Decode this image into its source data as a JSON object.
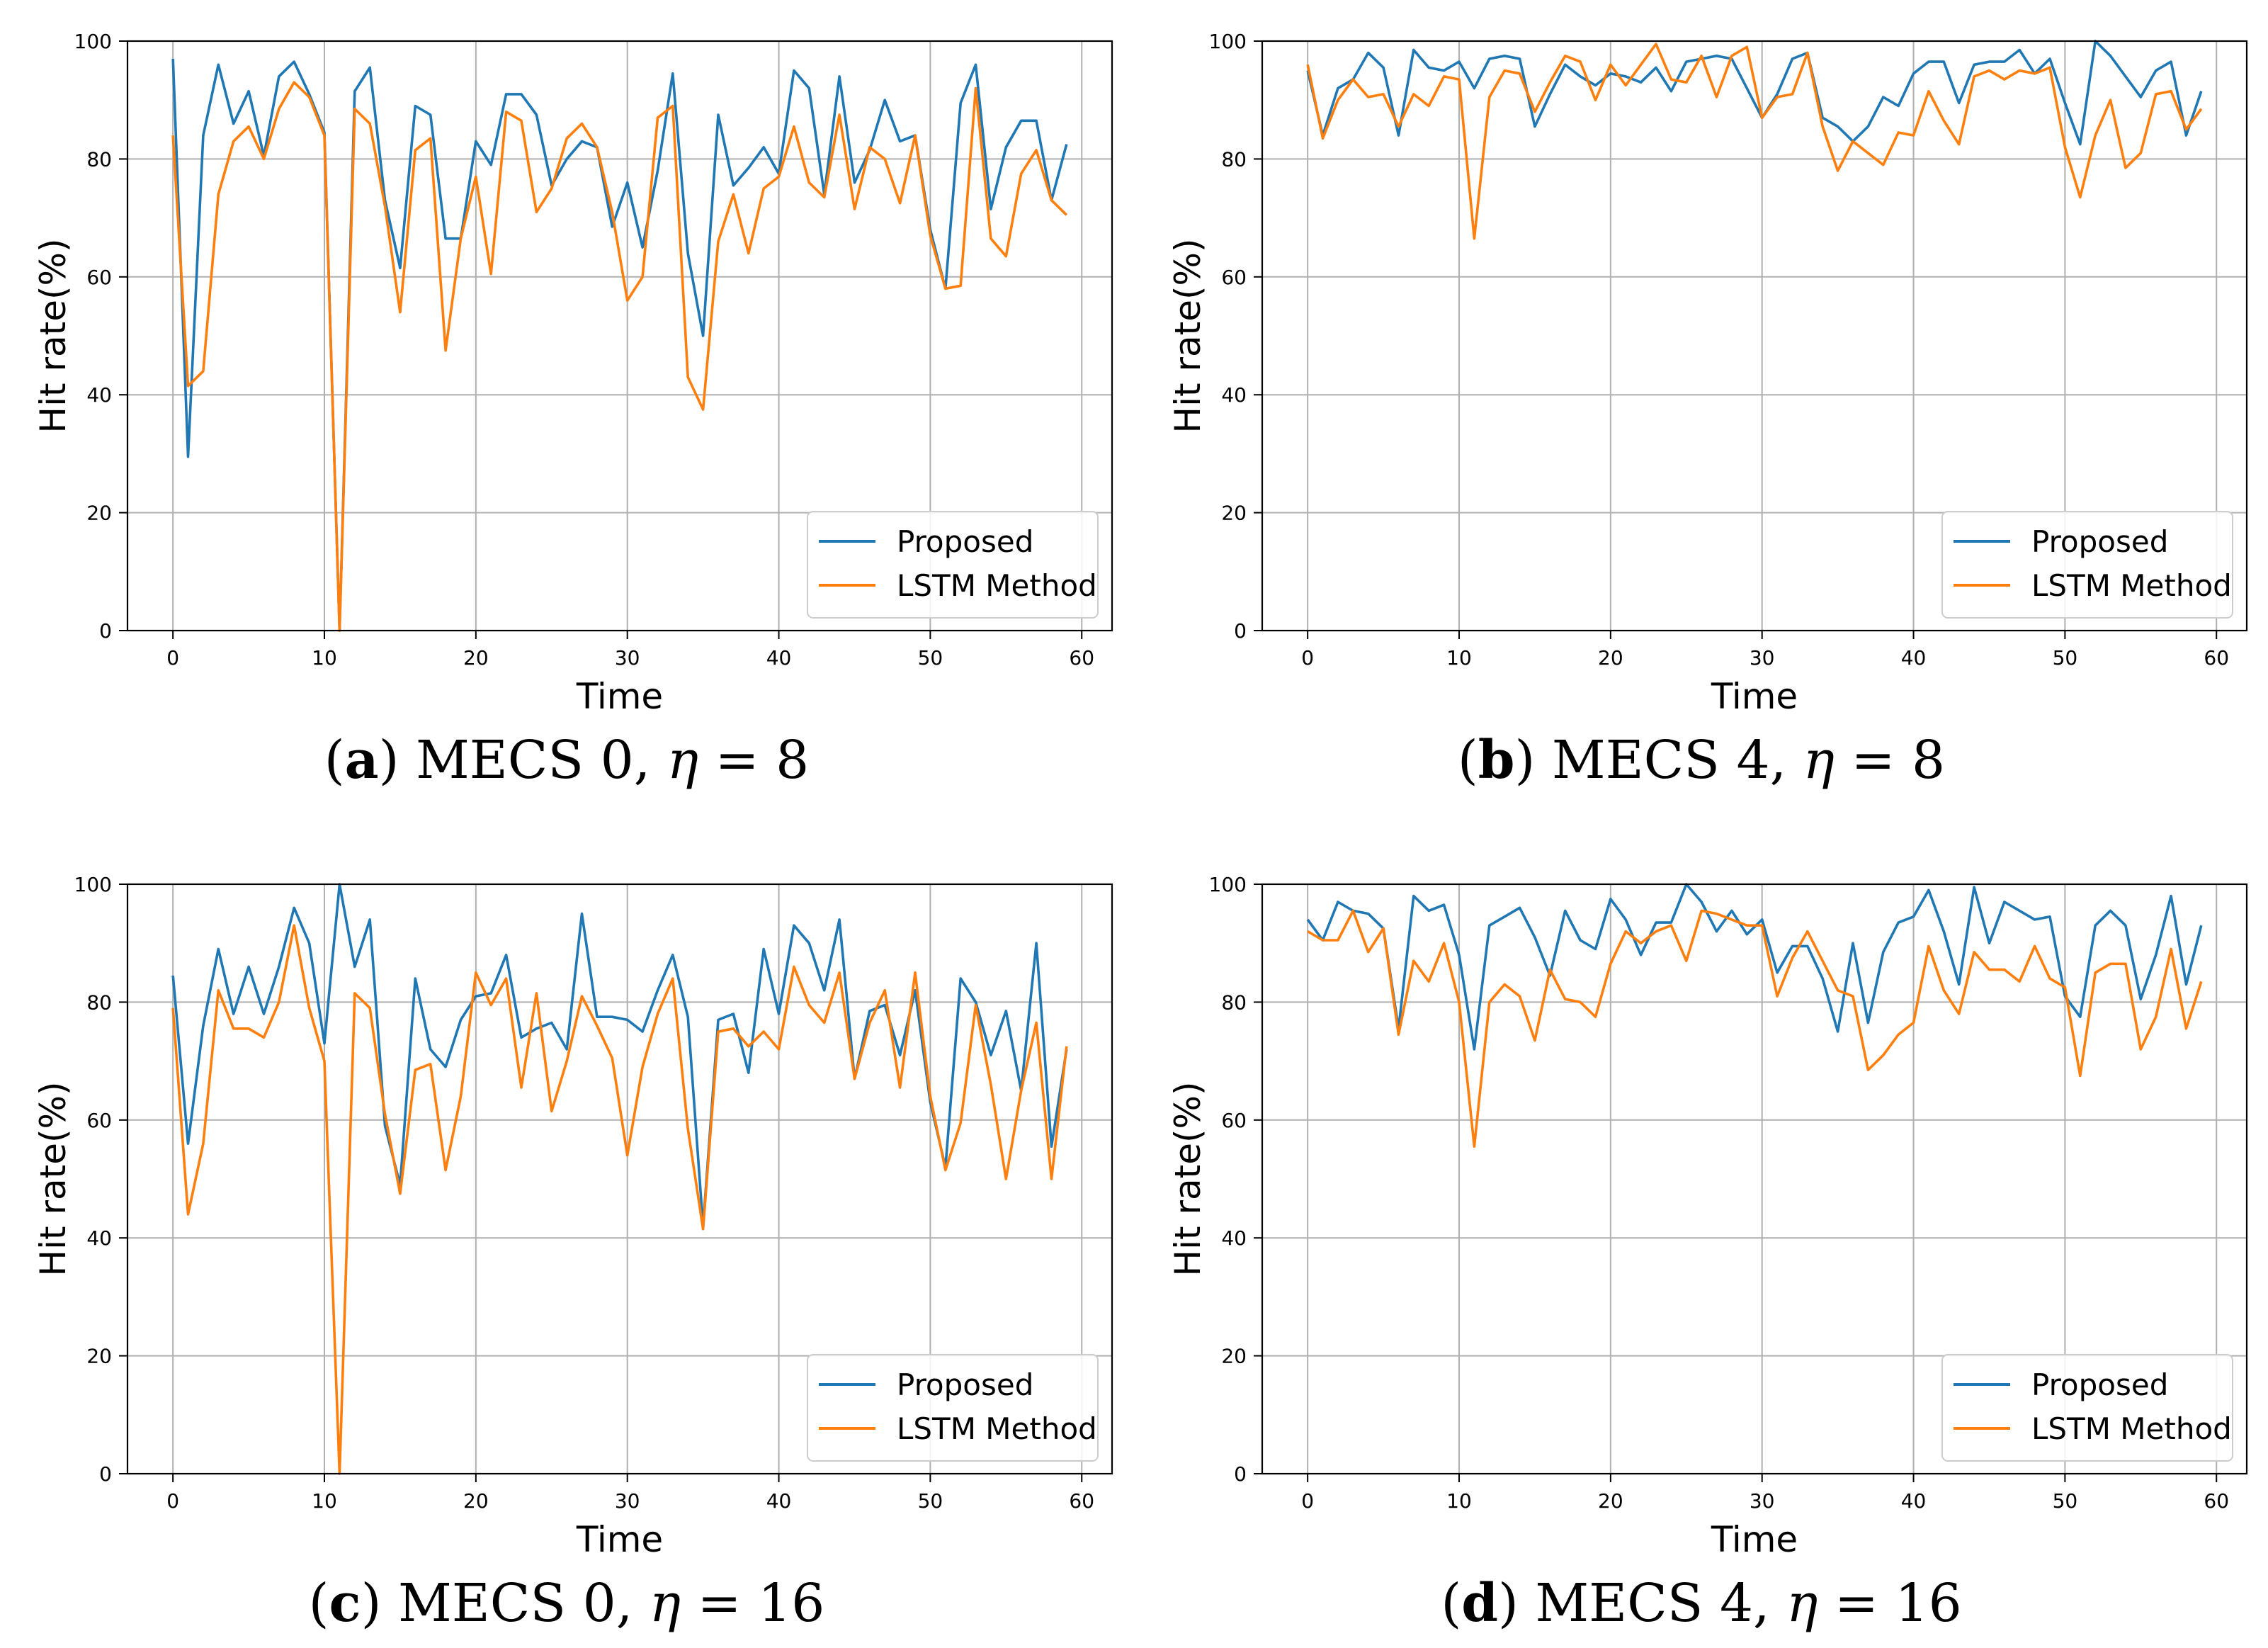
{
  "figure": {
    "colors": {
      "proposed": "#1f77b4",
      "lstm": "#ff7f0e",
      "grid": "#b0b0b0",
      "axis": "#000000"
    }
  },
  "chart_data": [
    {
      "id": "a",
      "type": "line",
      "caption": {
        "letter": "a",
        "text": "MECS 0, ",
        "eta": "η",
        "eq": " = 8"
      },
      "xlabel": "Time",
      "ylabel": "Hit rate(%)",
      "xlim": [
        -3,
        62
      ],
      "ylim": [
        0,
        100
      ],
      "xticks": [
        0,
        10,
        20,
        30,
        40,
        50,
        60
      ],
      "yticks": [
        0,
        20,
        40,
        60,
        80,
        100
      ],
      "grid": true,
      "legend": {
        "position": "lower-right",
        "entries": [
          "Proposed",
          "LSTM Method"
        ]
      },
      "x": [
        0,
        1,
        2,
        3,
        4,
        5,
        6,
        7,
        8,
        9,
        10,
        11,
        12,
        13,
        14,
        15,
        16,
        17,
        18,
        19,
        20,
        21,
        22,
        23,
        24,
        25,
        26,
        27,
        28,
        29,
        30,
        31,
        32,
        33,
        34,
        35,
        36,
        37,
        38,
        39,
        40,
        41,
        42,
        43,
        44,
        45,
        46,
        47,
        48,
        49,
        50,
        51,
        52,
        53,
        54,
        55,
        56,
        57,
        58,
        59
      ],
      "series": [
        {
          "name": "Proposed",
          "values": [
            97,
            29.5,
            84,
            96,
            86,
            91.5,
            80.5,
            94,
            96.5,
            91,
            84.5,
            0,
            91.5,
            95.5,
            73,
            61.5,
            89,
            87.5,
            66.5,
            66.5,
            83,
            79,
            91,
            91,
            87.5,
            75.5,
            80,
            83,
            82,
            68.5,
            76,
            65,
            78,
            94.5,
            64,
            50,
            87.5,
            75.5,
            78.5,
            82,
            77.5,
            95,
            92,
            74,
            94,
            76,
            81.5,
            90,
            83,
            84,
            68,
            58,
            89.5,
            96,
            71.5,
            82,
            86.5,
            86.5,
            73,
            82.5
          ]
        },
        {
          "name": "LSTM Method",
          "values": [
            84,
            41.5,
            44,
            74,
            83,
            85.5,
            80,
            88.5,
            93,
            90.5,
            84,
            0,
            88.5,
            86,
            72,
            54,
            81.5,
            83.5,
            47.5,
            66.5,
            77,
            60.5,
            88,
            86.5,
            71,
            75,
            83.5,
            86,
            82,
            71,
            56,
            60,
            87,
            89,
            43,
            37.5,
            66,
            74,
            64,
            75,
            77,
            85.5,
            76,
            73.5,
            87.5,
            71.5,
            82,
            80,
            72.5,
            84,
            67,
            58,
            58.5,
            92,
            66.5,
            63.5,
            77.5,
            81.5,
            73,
            70.5
          ]
        }
      ]
    },
    {
      "id": "b",
      "type": "line",
      "caption": {
        "letter": "b",
        "text": "MECS 4, ",
        "eta": "η",
        "eq": " = 8"
      },
      "xlabel": "Time",
      "ylabel": "Hit rate(%)",
      "xlim": [
        -3,
        62
      ],
      "ylim": [
        0,
        100
      ],
      "xticks": [
        0,
        10,
        20,
        30,
        40,
        50,
        60
      ],
      "yticks": [
        0,
        20,
        40,
        60,
        80,
        100
      ],
      "grid": true,
      "legend": {
        "position": "lower-right",
        "entries": [
          "Proposed",
          "LSTM Method"
        ]
      },
      "x": [
        0,
        1,
        2,
        3,
        4,
        5,
        6,
        7,
        8,
        9,
        10,
        11,
        12,
        13,
        14,
        15,
        16,
        17,
        18,
        19,
        20,
        21,
        22,
        23,
        24,
        25,
        26,
        27,
        28,
        29,
        30,
        31,
        32,
        33,
        34,
        35,
        36,
        37,
        38,
        39,
        40,
        41,
        42,
        43,
        44,
        45,
        46,
        47,
        48,
        49,
        50,
        51,
        52,
        53,
        54,
        55,
        56,
        57,
        58,
        59
      ],
      "series": [
        {
          "name": "Proposed",
          "values": [
            95,
            84,
            92,
            93.5,
            98,
            95.5,
            84,
            98.5,
            95.5,
            95,
            96.5,
            92,
            97,
            97.5,
            97,
            85.5,
            91,
            96,
            94,
            92.5,
            94.5,
            94,
            93,
            95.5,
            91.5,
            96.5,
            97,
            97.5,
            97,
            92,
            87,
            91,
            97,
            98,
            87,
            85.5,
            83,
            85.5,
            90.5,
            89,
            94.5,
            96.5,
            96.5,
            89.5,
            96,
            96.5,
            96.5,
            98.5,
            94.5,
            97,
            89.5,
            82.5,
            100,
            97.5,
            94,
            90.5,
            95,
            96.5,
            84,
            91.5
          ]
        },
        {
          "name": "LSTM Method",
          "values": [
            96,
            83.5,
            90,
            93.5,
            90.5,
            91,
            85.5,
            91,
            89,
            94,
            93.5,
            66.5,
            90.5,
            95,
            94.5,
            88,
            93,
            97.5,
            96.5,
            90,
            96,
            92.5,
            96,
            99.5,
            93.5,
            93,
            97.5,
            90.5,
            97.5,
            99,
            87,
            90.5,
            91,
            98,
            85.5,
            78,
            83,
            81,
            79,
            84.5,
            84,
            91.5,
            86.5,
            82.5,
            94,
            95,
            93.5,
            95,
            94.5,
            95.5,
            82,
            73.5,
            84,
            90,
            78.5,
            81,
            91,
            91.5,
            85,
            88.5
          ]
        }
      ]
    },
    {
      "id": "c",
      "type": "line",
      "caption": {
        "letter": "c",
        "text": "MECS 0, ",
        "eta": "η",
        "eq": " = 16"
      },
      "xlabel": "Time",
      "ylabel": "Hit rate(%)",
      "xlim": [
        -3,
        62
      ],
      "ylim": [
        0,
        100
      ],
      "xticks": [
        0,
        10,
        20,
        30,
        40,
        50,
        60
      ],
      "yticks": [
        0,
        20,
        40,
        60,
        80,
        100
      ],
      "grid": true,
      "legend": {
        "position": "lower-right",
        "entries": [
          "Proposed",
          "LSTM Method"
        ]
      },
      "x": [
        0,
        1,
        2,
        3,
        4,
        5,
        6,
        7,
        8,
        9,
        10,
        11,
        12,
        13,
        14,
        15,
        16,
        17,
        18,
        19,
        20,
        21,
        22,
        23,
        24,
        25,
        26,
        27,
        28,
        29,
        30,
        31,
        32,
        33,
        34,
        35,
        36,
        37,
        38,
        39,
        40,
        41,
        42,
        43,
        44,
        45,
        46,
        47,
        48,
        49,
        50,
        51,
        52,
        53,
        54,
        55,
        56,
        57,
        58,
        59
      ],
      "series": [
        {
          "name": "Proposed",
          "values": [
            84.5,
            56,
            76,
            89,
            78,
            86,
            78,
            86,
            96,
            90,
            73,
            100,
            86,
            94,
            59,
            49,
            84,
            72,
            69,
            77,
            81,
            81.5,
            88,
            74,
            75.5,
            76.5,
            72,
            95,
            77.5,
            77.5,
            77,
            75,
            82,
            88,
            77.5,
            42,
            77,
            78,
            68,
            89,
            78,
            93,
            90,
            82,
            94,
            67,
            78.5,
            79.5,
            71,
            82,
            63,
            52,
            84,
            80,
            71,
            78.5,
            65,
            90,
            55.5,
            72
          ]
        },
        {
          "name": "LSTM Method",
          "values": [
            79,
            44,
            56,
            82,
            75.5,
            75.5,
            74,
            80,
            93,
            79,
            70,
            0,
            81.5,
            79,
            61,
            47.5,
            68.5,
            69.5,
            51.5,
            64,
            85,
            79.5,
            84,
            65.5,
            81.5,
            61.5,
            70,
            81,
            76,
            70.5,
            54,
            69,
            78,
            84,
            58.5,
            41.5,
            75,
            75.5,
            72.5,
            75,
            72,
            86,
            79.5,
            76.5,
            85,
            67,
            76.5,
            82,
            65.5,
            85,
            64,
            51.5,
            59.5,
            79.5,
            66,
            50,
            65,
            76.5,
            50,
            72.5
          ]
        }
      ]
    },
    {
      "id": "d",
      "type": "line",
      "caption": {
        "letter": "d",
        "text": "MECS 4, ",
        "eta": "η",
        "eq": " = 16"
      },
      "xlabel": "Time",
      "ylabel": "Hit rate(%)",
      "xlim": [
        -3,
        62
      ],
      "ylim": [
        0,
        100
      ],
      "xticks": [
        0,
        10,
        20,
        30,
        40,
        50,
        60
      ],
      "yticks": [
        0,
        20,
        40,
        60,
        80,
        100
      ],
      "grid": true,
      "legend": {
        "position": "lower-right",
        "entries": [
          "Proposed",
          "LSTM Method"
        ]
      },
      "x": [
        0,
        1,
        2,
        3,
        4,
        5,
        6,
        7,
        8,
        9,
        10,
        11,
        12,
        13,
        14,
        15,
        16,
        17,
        18,
        19,
        20,
        21,
        22,
        23,
        24,
        25,
        26,
        27,
        28,
        29,
        30,
        31,
        32,
        33,
        34,
        35,
        36,
        37,
        38,
        39,
        40,
        41,
        42,
        43,
        44,
        45,
        46,
        47,
        48,
        49,
        50,
        51,
        52,
        53,
        54,
        55,
        56,
        57,
        58,
        59
      ],
      "series": [
        {
          "name": "Proposed",
          "values": [
            94,
            90.5,
            97,
            95.5,
            95,
            92.5,
            75.5,
            98,
            95.5,
            96.5,
            88,
            72,
            93,
            94.5,
            96,
            91,
            84.5,
            95.5,
            90.5,
            89,
            97.5,
            94,
            88,
            93.5,
            93.5,
            100,
            97,
            92,
            95.5,
            91.5,
            94,
            85,
            89.5,
            89.5,
            84,
            75,
            90,
            76.5,
            88.5,
            93.5,
            94.5,
            99,
            92,
            83,
            99.5,
            90,
            97,
            95.5,
            94,
            94.5,
            81,
            77.5,
            93,
            95.5,
            93,
            80.5,
            88,
            98,
            83,
            93
          ]
        },
        {
          "name": "LSTM Method",
          "values": [
            92,
            90.5,
            90.5,
            95.5,
            88.5,
            92.5,
            74.5,
            87,
            83.5,
            90,
            80,
            55.5,
            80,
            83,
            81,
            73.5,
            85.5,
            80.5,
            80,
            77.5,
            86.5,
            92,
            90,
            92,
            93,
            87,
            95.5,
            95,
            94,
            93,
            93,
            81,
            87.5,
            92,
            87,
            82,
            81,
            68.5,
            71,
            74.5,
            76.5,
            89.5,
            82,
            78,
            88.5,
            85.5,
            85.5,
            83.5,
            89.5,
            84,
            82.5,
            67.5,
            85,
            86.5,
            86.5,
            72,
            77.5,
            89,
            75.5,
            83.5
          ]
        }
      ]
    }
  ]
}
